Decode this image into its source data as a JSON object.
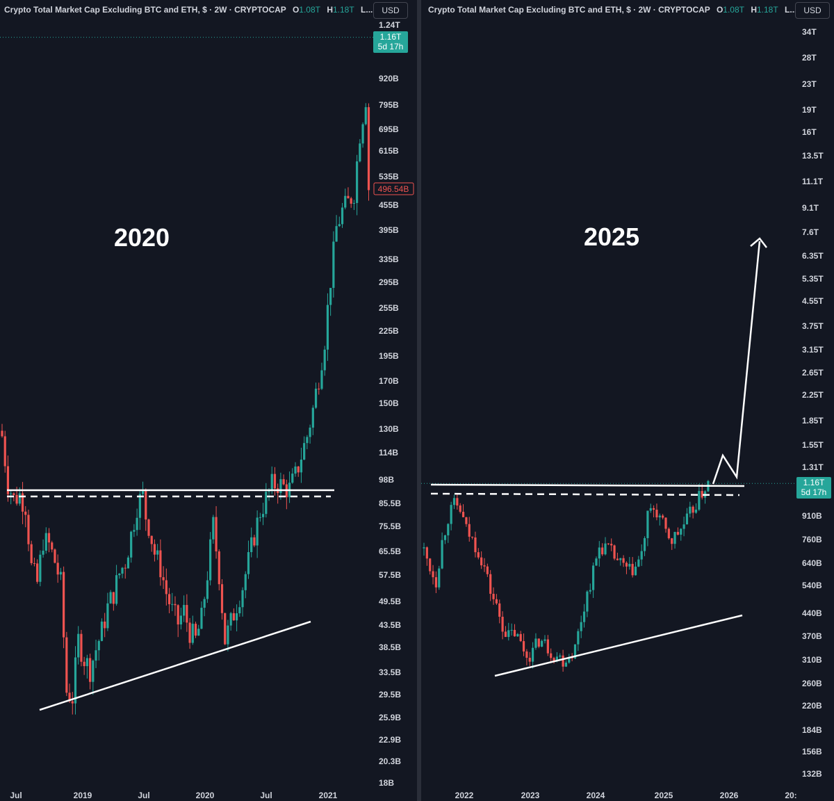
{
  "left": {
    "header": {
      "title": "Crypto Total Market Cap Excluding BTC and ETH, $ · 2W · CRYPTOCAP",
      "o_label": "O",
      "o_value": "1.08T",
      "h_label": "H",
      "h_value": "1.18T",
      "l_label": "L..."
    },
    "currency": "USD",
    "annotation": "2020",
    "price_axis": [
      "1.24T",
      "920B",
      "795B",
      "695B",
      "615B",
      "535B",
      "455B",
      "395B",
      "335B",
      "295B",
      "255B",
      "225B",
      "195B",
      "170B",
      "150B",
      "130B",
      "114B",
      "98B",
      "85.5B",
      "75.5B",
      "65.5B",
      "57.5B",
      "49.5B",
      "43.5B",
      "38.5B",
      "33.5B",
      "29.5B",
      "25.9B",
      "22.9B",
      "20.3B",
      "18B"
    ],
    "time_axis": [
      "Jul",
      "2019",
      "Jul",
      "2020",
      "Jul",
      "2021"
    ],
    "current_price_label": "1.16T",
    "countdown": "5d 17h",
    "last_price_label": "496.54B"
  },
  "right": {
    "header": {
      "title": "Crypto Total Market Cap Excluding BTC and ETH, $ · 2W · CRYPTOCAP",
      "o_label": "O",
      "o_value": "1.08T",
      "h_label": "H",
      "h_value": "1.18T",
      "l_label": "L..."
    },
    "currency": "USD",
    "annotation": "2025",
    "price_axis": [
      "34T",
      "28T",
      "23T",
      "19T",
      "16T",
      "13.5T",
      "11.1T",
      "9.1T",
      "7.6T",
      "6.35T",
      "5.35T",
      "4.55T",
      "3.75T",
      "3.15T",
      "2.65T",
      "2.25T",
      "1.85T",
      "1.55T",
      "1.31T",
      "910B",
      "760B",
      "640B",
      "540B",
      "440B",
      "370B",
      "310B",
      "260B",
      "220B",
      "184B",
      "156B",
      "132B"
    ],
    "time_axis": [
      "2022",
      "2023",
      "2024",
      "2025",
      "2026",
      "20:"
    ],
    "current_price_label": "1.16T",
    "countdown": "5d 17h"
  },
  "colors": {
    "background": "#131722",
    "up": "#26a69a",
    "down": "#ef5350",
    "text": "#d1d4dc",
    "lines": "#ffffff"
  },
  "chart_data": [
    {
      "type": "candlestick",
      "title": "Crypto Total Market Cap Excluding BTC and ETH, $ · 2W · CRYPTOCAP",
      "annotation": "2020",
      "y_scale": "log",
      "ylim": [
        17,
        1300
      ],
      "x_ticks": [
        "Jul",
        "2019",
        "Jul",
        "2020",
        "Jul",
        "2021"
      ],
      "close_path": [
        [
          0,
          125
        ],
        [
          2,
          96
        ],
        [
          4,
          88
        ],
        [
          6,
          90
        ],
        [
          8,
          85
        ],
        [
          10,
          60
        ],
        [
          12,
          55
        ],
        [
          14,
          70
        ],
        [
          16,
          68
        ],
        [
          18,
          62
        ],
        [
          20,
          55
        ],
        [
          22,
          30
        ],
        [
          24,
          29
        ],
        [
          26,
          40
        ],
        [
          28,
          36
        ],
        [
          30,
          34
        ],
        [
          32,
          38
        ],
        [
          34,
          42
        ],
        [
          36,
          48
        ],
        [
          38,
          52
        ],
        [
          40,
          58
        ],
        [
          42,
          62
        ],
        [
          44,
          72
        ],
        [
          46,
          85
        ],
        [
          48,
          90
        ],
        [
          49,
          80
        ],
        [
          50,
          76
        ],
        [
          52,
          65
        ],
        [
          54,
          60
        ],
        [
          56,
          52
        ],
        [
          58,
          47
        ],
        [
          60,
          44
        ],
        [
          62,
          47
        ],
        [
          64,
          42
        ],
        [
          66,
          40
        ],
        [
          68,
          45
        ],
        [
          70,
          58
        ],
        [
          72,
          76
        ],
        [
          74,
          58
        ],
        [
          76,
          40
        ],
        [
          78,
          44
        ],
        [
          80,
          49
        ],
        [
          82,
          54
        ],
        [
          84,
          62
        ],
        [
          86,
          72
        ],
        [
          88,
          82
        ],
        [
          90,
          88
        ],
        [
          92,
          95
        ],
        [
          94,
          96
        ],
        [
          96,
          94
        ],
        [
          98,
          93
        ],
        [
          100,
          100
        ],
        [
          102,
          112
        ],
        [
          104,
          125
        ],
        [
          106,
          145
        ],
        [
          108,
          175
        ],
        [
          110,
          215
        ],
        [
          112,
          300
        ],
        [
          114,
          400
        ],
        [
          116,
          440
        ],
        [
          118,
          460
        ],
        [
          120,
          490
        ],
        [
          122,
          680
        ],
        [
          124,
          830
        ],
        [
          125,
          500
        ]
      ]
    },
    {
      "type": "candlestick",
      "title": "Crypto Total Market Cap Excluding BTC and ETH, $ · 2W · CRYPTOCAP",
      "annotation": "2025",
      "y_scale": "log",
      "ylim": [
        125,
        38000
      ],
      "x_ticks": [
        "2022",
        "2023",
        "2024",
        "2025",
        "2026",
        "20:"
      ],
      "close_path": [
        [
          0,
          700
        ],
        [
          2,
          620
        ],
        [
          4,
          560
        ],
        [
          6,
          750
        ],
        [
          8,
          900
        ],
        [
          10,
          990
        ],
        [
          12,
          950
        ],
        [
          14,
          820
        ],
        [
          16,
          760
        ],
        [
          18,
          700
        ],
        [
          20,
          620
        ],
        [
          22,
          520
        ],
        [
          24,
          460
        ],
        [
          26,
          400
        ],
        [
          28,
          370
        ],
        [
          30,
          380
        ],
        [
          32,
          350
        ],
        [
          34,
          320
        ],
        [
          36,
          330
        ],
        [
          38,
          360
        ],
        [
          40,
          350
        ],
        [
          42,
          330
        ],
        [
          44,
          320
        ],
        [
          46,
          310
        ],
        [
          48,
          320
        ],
        [
          50,
          340
        ],
        [
          52,
          420
        ],
        [
          54,
          510
        ],
        [
          56,
          600
        ],
        [
          58,
          720
        ],
        [
          60,
          720
        ],
        [
          62,
          690
        ],
        [
          64,
          650
        ],
        [
          66,
          620
        ],
        [
          68,
          600
        ],
        [
          70,
          620
        ],
        [
          72,
          680
        ],
        [
          74,
          900
        ],
        [
          76,
          960
        ],
        [
          78,
          900
        ],
        [
          80,
          800
        ],
        [
          82,
          760
        ],
        [
          84,
          800
        ],
        [
          86,
          850
        ],
        [
          88,
          920
        ],
        [
          90,
          1000
        ],
        [
          92,
          1080
        ],
        [
          94,
          1160
        ]
      ],
      "projection": [
        [
          0,
          1200
        ],
        [
          2,
          1350
        ],
        [
          4,
          1200
        ],
        [
          8,
          7000
        ]
      ]
    }
  ]
}
